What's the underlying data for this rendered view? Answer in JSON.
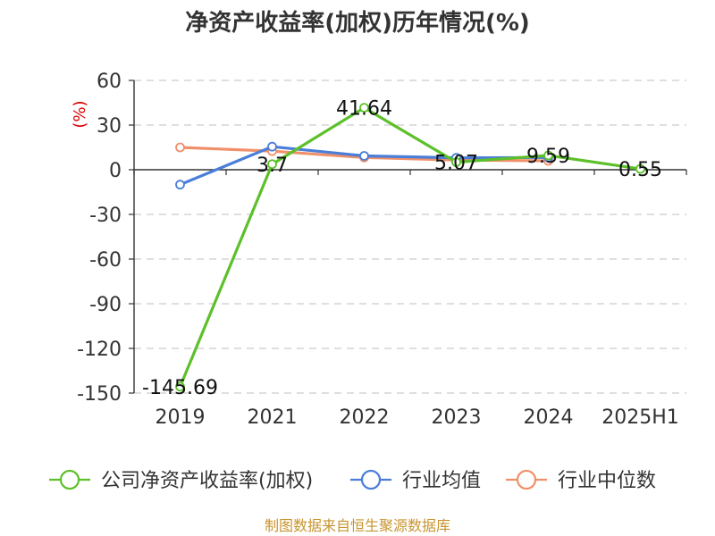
{
  "chart_data": {
    "type": "line",
    "title": "净资产收益率(加权)历年情况(%)",
    "ylabel": "(%)",
    "categories": [
      "2019",
      "2021",
      "2022",
      "2023",
      "2024",
      "2025H1"
    ],
    "ylim": [
      -150,
      60
    ],
    "yticks": [
      60,
      30,
      0,
      -30,
      -60,
      -90,
      -120,
      -150
    ],
    "grid": true,
    "legend_position": "bottom",
    "series": [
      {
        "name": "公司净资产收益率(加权)",
        "color": "#5cc02a",
        "values": [
          -145.69,
          3.7,
          41.64,
          5.07,
          9.59,
          0.55
        ],
        "labels": [
          "-145.69",
          "3.7",
          "41.64",
          "5.07",
          "9.59",
          "0.55"
        ]
      },
      {
        "name": "行业均值",
        "color": "#4a7ed8",
        "values": [
          -10,
          15.5,
          9.3,
          8.0,
          8.2,
          null
        ]
      },
      {
        "name": "行业中位数",
        "color": "#f0906a",
        "values": [
          15,
          12.5,
          8.2,
          6.5,
          6.0,
          null
        ]
      }
    ],
    "source": "制图数据来自恒生聚源数据库"
  }
}
